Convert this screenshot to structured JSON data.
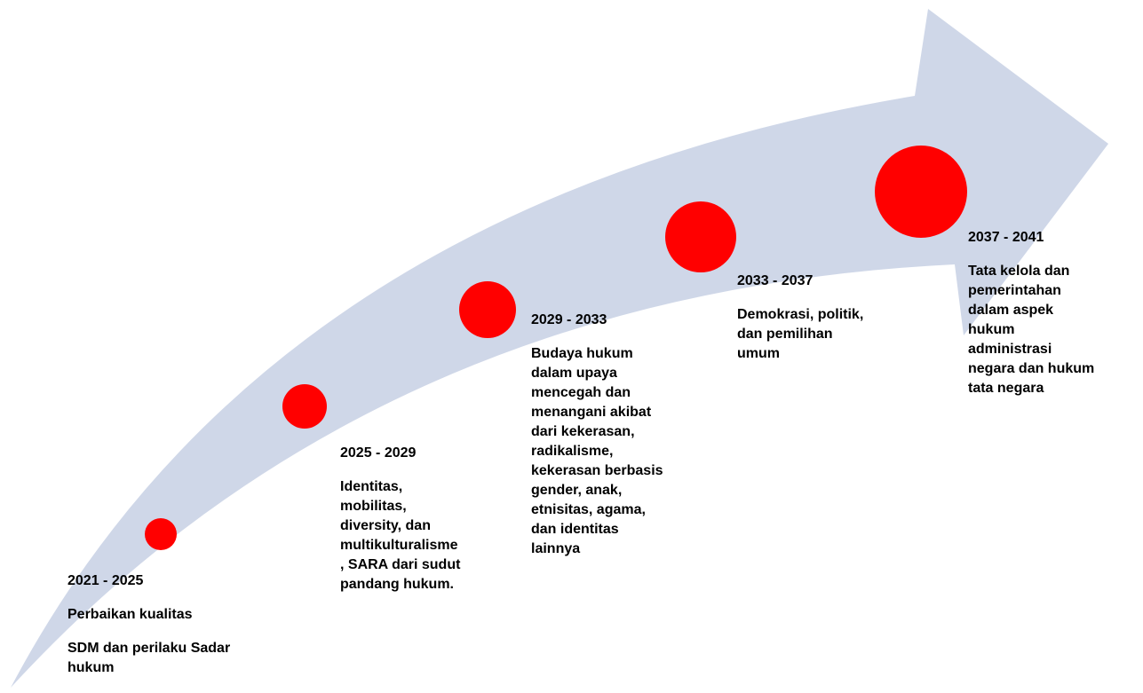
{
  "milestones": [
    {
      "period": "2021 - 2025",
      "paragraphs": [
        [
          "Perbaikan kualitas"
        ],
        [
          "SDM dan perilaku Sadar",
          "hukum"
        ]
      ]
    },
    {
      "period": "2025 - 2029",
      "paragraphs": [
        [
          "Identitas,",
          "mobilitas,",
          "diversity, dan",
          "multikulturalisme",
          ", SARA dari sudut",
          "pandang hukum."
        ]
      ]
    },
    {
      "period": "2029 - 2033",
      "paragraphs": [
        [
          "Budaya hukum",
          "dalam upaya",
          "mencegah dan",
          "menangani akibat",
          "dari kekerasan,",
          "radikalisme,",
          "kekerasan berbasis",
          "gender, anak,",
          "etnisitas, agama,",
          "dan identitas",
          "lainnya"
        ]
      ]
    },
    {
      "period": "2033 - 2037",
      "paragraphs": [
        [
          "Demokrasi, politik,",
          "dan pemilihan",
          "umum"
        ]
      ]
    },
    {
      "period": "2037 - 2041",
      "paragraphs": [
        [
          "Tata kelola dan",
          "pemerintahan",
          "dalam aspek",
          "hukum",
          "administrasi",
          "negara dan hukum",
          "tata negara"
        ]
      ]
    }
  ]
}
